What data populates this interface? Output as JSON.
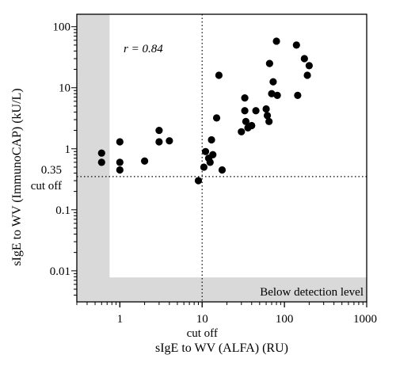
{
  "chart_data": {
    "type": "scatter",
    "x_scale": "log",
    "y_scale": "log",
    "xlim": [
      0.3,
      1000
    ],
    "ylim": [
      0.0031,
      160
    ],
    "xlabel": "sIgE to WV (ALFA) (RU)",
    "ylabel": "sIgE to WV (ImmunoCAP) (kU/L)",
    "x_ticks": [
      1,
      10,
      100,
      1000
    ],
    "x_tick_labels": [
      "1",
      "10",
      "100",
      "1000"
    ],
    "y_ticks": [
      0.01,
      0.1,
      1,
      10,
      100
    ],
    "y_tick_labels": [
      "0.01",
      "0.1",
      "1",
      "10",
      "100"
    ],
    "y_cutoff": {
      "value": 0.35,
      "label": "0.35",
      "sublabel": "cut off"
    },
    "x_cutoff": {
      "value": 10,
      "label": "cut off"
    },
    "correlation_label": "r = 0.84",
    "region_label": "Below detection level",
    "below_detection": {
      "x_max": 0.75,
      "y_max": 0.0078
    },
    "grid": false,
    "colors": {
      "points": "#000000",
      "shade": "#d9d9d9",
      "axis": "#000000"
    },
    "points": [
      {
        "x": 0.6,
        "y": 0.85
      },
      {
        "x": 0.6,
        "y": 0.6
      },
      {
        "x": 1.0,
        "y": 1.3
      },
      {
        "x": 1.0,
        "y": 0.6
      },
      {
        "x": 1.0,
        "y": 0.45
      },
      {
        "x": 2.0,
        "y": 0.63
      },
      {
        "x": 3.0,
        "y": 2.0
      },
      {
        "x": 3.0,
        "y": 1.3
      },
      {
        "x": 4.0,
        "y": 1.35
      },
      {
        "x": 9.0,
        "y": 0.3
      },
      {
        "x": 10.5,
        "y": 0.5
      },
      {
        "x": 11.0,
        "y": 0.9
      },
      {
        "x": 12.0,
        "y": 0.7
      },
      {
        "x": 12.5,
        "y": 0.6
      },
      {
        "x": 13.0,
        "y": 1.4
      },
      {
        "x": 13.5,
        "y": 0.8
      },
      {
        "x": 15.0,
        "y": 3.2
      },
      {
        "x": 16.0,
        "y": 16.0
      },
      {
        "x": 17.5,
        "y": 0.45
      },
      {
        "x": 30.0,
        "y": 1.9
      },
      {
        "x": 33.0,
        "y": 6.8
      },
      {
        "x": 33.0,
        "y": 4.2
      },
      {
        "x": 34.0,
        "y": 2.8
      },
      {
        "x": 36.0,
        "y": 2.2
      },
      {
        "x": 40.0,
        "y": 2.4
      },
      {
        "x": 45.0,
        "y": 4.2
      },
      {
        "x": 60.0,
        "y": 4.5
      },
      {
        "x": 62.0,
        "y": 3.5
      },
      {
        "x": 65.0,
        "y": 2.8
      },
      {
        "x": 66.0,
        "y": 25.0
      },
      {
        "x": 70.0,
        "y": 8.0
      },
      {
        "x": 73.0,
        "y": 12.5
      },
      {
        "x": 80.0,
        "y": 58.0
      },
      {
        "x": 82.0,
        "y": 7.5
      },
      {
        "x": 140.0,
        "y": 50.0
      },
      {
        "x": 145.0,
        "y": 7.5
      },
      {
        "x": 175.0,
        "y": 30.0
      },
      {
        "x": 190.0,
        "y": 16.0
      },
      {
        "x": 200.0,
        "y": 23.0
      }
    ]
  }
}
